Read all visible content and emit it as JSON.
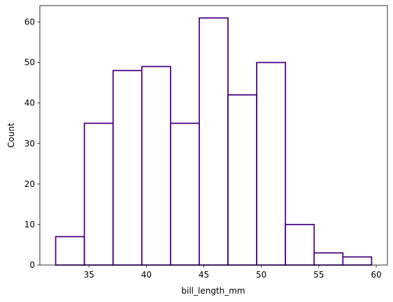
{
  "chart_data": {
    "type": "histogram",
    "xlabel": "bill_length_mm",
    "ylabel": "Count",
    "bins": [
      32.1,
      34.6,
      37.1,
      39.6,
      42.1,
      44.6,
      47.1,
      49.6,
      52.1,
      54.6,
      57.1,
      59.6
    ],
    "values": [
      7,
      35,
      48,
      49,
      35,
      61,
      42,
      50,
      10,
      3,
      2
    ],
    "color": "#4b0082",
    "xlim": [
      30.725,
      60.975
    ],
    "xticks": [
      35,
      40,
      45,
      50,
      55,
      60
    ],
    "ylim": [
      0,
      64.05
    ],
    "yticks": [
      0,
      10,
      20,
      30,
      40,
      50,
      60
    ]
  }
}
